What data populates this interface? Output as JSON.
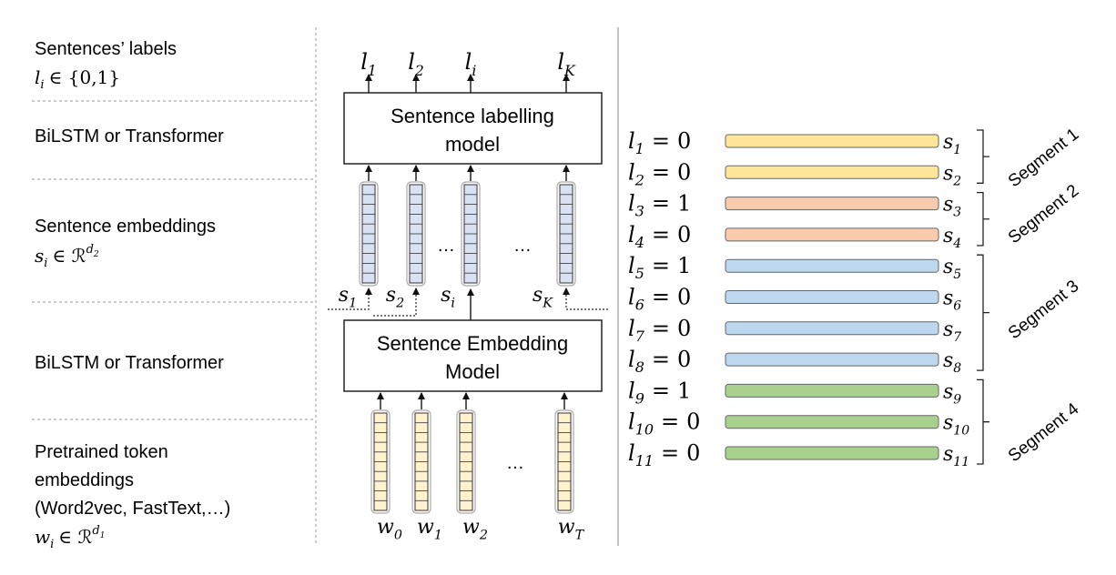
{
  "layer_labels": {
    "sentence_labels": {
      "title": "Sentences’ labels",
      "formula_var": "l",
      "formula_sub": "i",
      "formula_rest": "∈ {0,1}"
    },
    "labelling_encoder": {
      "title": "BiLSTM or Transformer"
    },
    "sentence_embeddings": {
      "title": "Sentence embeddings",
      "formula_var": "s",
      "formula_sub": "i",
      "formula_rest": "∈ ℛ",
      "formula_sup_var": "d",
      "formula_sup_sub": "2"
    },
    "embedding_encoder": {
      "title": "BiLSTM or Transformer"
    },
    "token_embeddings": {
      "title_line1": "Pretrained token",
      "title_line2": "embeddings",
      "title_line3": "(Word2vec, FastText,…)",
      "formula_var": "w",
      "formula_sub": "i",
      "formula_rest": "∈ ℛ",
      "formula_sup_var": "d",
      "formula_sup_sub": "1"
    }
  },
  "architecture": {
    "labelling_model": {
      "line1": "Sentence labelling",
      "line2": "model"
    },
    "embedding_model": {
      "line1": "Sentence Embedding",
      "line2": "Model"
    },
    "output_labels": [
      {
        "var": "l",
        "sub": "1"
      },
      {
        "var": "l",
        "sub": "2"
      },
      {
        "var": "l",
        "sub": "i"
      },
      {
        "var": "l",
        "sub": "K"
      }
    ],
    "sentence_vectors": [
      {
        "var": "s",
        "sub": "1"
      },
      {
        "var": "s",
        "sub": "2"
      },
      {
        "var": "s",
        "sub": "i"
      },
      {
        "var": "s",
        "sub": "K"
      }
    ],
    "token_vectors": [
      {
        "var": "w",
        "sub": "0"
      },
      {
        "var": "w",
        "sub": "1"
      },
      {
        "var": "w",
        "sub": "2"
      },
      {
        "var": "w",
        "sub": "T"
      }
    ],
    "ellipsis": "…",
    "sentence_color": "#d9e1f2",
    "token_color": "#fff2cc"
  },
  "segmentation_example": {
    "rows": [
      {
        "label_var": "l",
        "label_sub": "1",
        "value": "0",
        "sentence_var": "s",
        "sentence_sub": "1",
        "segment": 1
      },
      {
        "label_var": "l",
        "label_sub": "2",
        "value": "0",
        "sentence_var": "s",
        "sentence_sub": "2",
        "segment": 1
      },
      {
        "label_var": "l",
        "label_sub": "3",
        "value": "1",
        "sentence_var": "s",
        "sentence_sub": "3",
        "segment": 2
      },
      {
        "label_var": "l",
        "label_sub": "4",
        "value": "0",
        "sentence_var": "s",
        "sentence_sub": "4",
        "segment": 2
      },
      {
        "label_var": "l",
        "label_sub": "5",
        "value": "1",
        "sentence_var": "s",
        "sentence_sub": "5",
        "segment": 3
      },
      {
        "label_var": "l",
        "label_sub": "6",
        "value": "0",
        "sentence_var": "s",
        "sentence_sub": "6",
        "segment": 3
      },
      {
        "label_var": "l",
        "label_sub": "7",
        "value": "0",
        "sentence_var": "s",
        "sentence_sub": "7",
        "segment": 3
      },
      {
        "label_var": "l",
        "label_sub": "8",
        "value": "0",
        "sentence_var": "s",
        "sentence_sub": "8",
        "segment": 3
      },
      {
        "label_var": "l",
        "label_sub": "9",
        "value": "1",
        "sentence_var": "s",
        "sentence_sub": "9",
        "segment": 4
      },
      {
        "label_var": "l",
        "label_sub": "10",
        "value": "0",
        "sentence_var": "s",
        "sentence_sub": "10",
        "segment": 4
      },
      {
        "label_var": "l",
        "label_sub": "11",
        "value": "0",
        "sentence_var": "s",
        "sentence_sub": "11",
        "segment": 4
      }
    ],
    "segments": [
      {
        "id": 1,
        "label": "Segment 1",
        "color": "#ffe699"
      },
      {
        "id": 2,
        "label": "Segment 2",
        "color": "#f8cbad"
      },
      {
        "id": 3,
        "label": "Segment 3",
        "color": "#bdd7ee"
      },
      {
        "id": 4,
        "label": "Segment 4",
        "color": "#a9d18e"
      }
    ]
  }
}
